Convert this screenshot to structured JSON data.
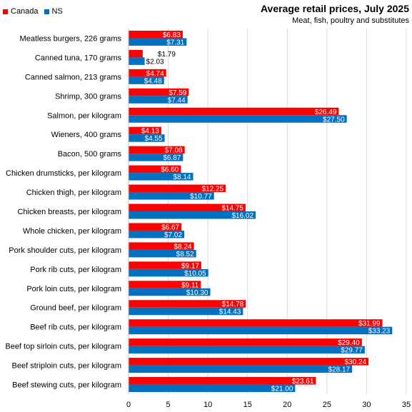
{
  "colors": {
    "canada": "#ff0000",
    "ns": "#0070c0",
    "grid": "#d9d9d9",
    "axis": "#bfbfbf"
  },
  "chart_data": {
    "type": "bar",
    "orientation": "horizontal",
    "title": "Average retail prices, July 2025",
    "subtitle": "Meat,  fish, poultry and substitutes",
    "legend_position": "top-left",
    "grid": true,
    "xlim": [
      0,
      35
    ],
    "xticks": [
      0,
      5,
      10,
      15,
      20,
      25,
      30,
      35
    ],
    "categories": [
      "Meatless burgers, 226 grams",
      "Canned tuna, 170 grams",
      "Canned salmon, 213 grams",
      "Shrimp, 300 grams",
      "Salmon, per kilogram",
      "Wieners, 400 grams",
      "Bacon, 500 grams",
      "Chicken drumsticks, per kilogram",
      "Chicken thigh, per kilogram",
      "Chicken breasts, per kilogram",
      "Whole chicken, per kilogram",
      "Pork shoulder cuts, per kilogram",
      "Pork rib cuts, per kilogram",
      "Pork loin cuts, per kilogram",
      "Ground beef, per kilogram",
      "Beef rib cuts, per kilogram",
      "Beef top sirloin cuts, per kilogram",
      "Beef striploin cuts, per kilogram",
      "Beef stewing cuts, per kilogram"
    ],
    "series": [
      {
        "name": "Canada",
        "values": [
          6.83,
          1.79,
          4.74,
          7.59,
          26.49,
          4.13,
          7.08,
          6.6,
          12.25,
          14.75,
          6.67,
          8.24,
          9.17,
          9.11,
          14.78,
          31.99,
          29.4,
          30.24,
          23.61
        ],
        "labels": [
          "$6.83",
          "$1.79",
          "$4.74",
          "$7.59",
          "$26.49",
          "$4.13",
          "$7.08",
          "$6.60",
          "$12.25",
          "$14.75",
          "$6.67",
          "$8.24",
          "$9.17",
          "$9.11",
          "$14.78",
          "$31.99",
          "$29.40",
          "$30.24",
          "$23.61"
        ]
      },
      {
        "name": "NS",
        "values": [
          7.31,
          2.03,
          4.48,
          7.44,
          27.5,
          4.55,
          6.87,
          8.14,
          10.77,
          16.02,
          7.02,
          8.52,
          10.05,
          10.3,
          14.43,
          33.23,
          29.77,
          28.17,
          21.0
        ],
        "labels": [
          "$7.31",
          "$2.03",
          "$4.48",
          "$7.44",
          "$27.50",
          "$4.55",
          "$6.87",
          "$8.14",
          "$10.77",
          "$16.02",
          "$7.02",
          "$8.52",
          "$10.05",
          "$10.30",
          "$14.43",
          "$33.23",
          "$29.77",
          "$28.17",
          "$21.00"
        ]
      }
    ]
  }
}
